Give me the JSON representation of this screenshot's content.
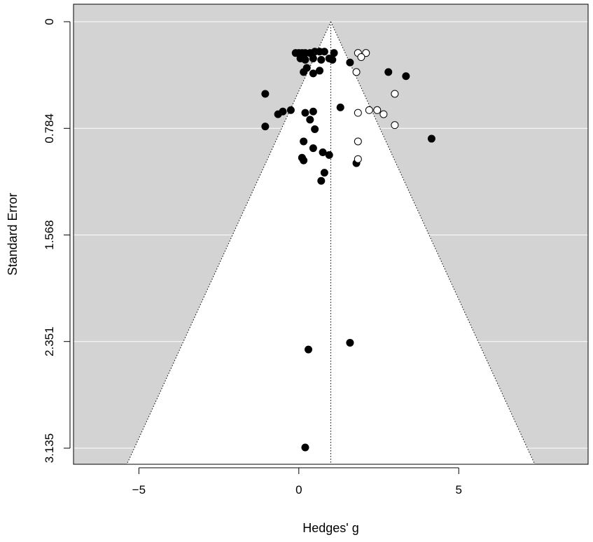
{
  "chart_data": {
    "type": "scatter",
    "subtype": "funnel-plot",
    "title": "",
    "xlabel": "Hedges' g",
    "ylabel": "Standard Error",
    "xlim": [
      -7,
      9
    ],
    "ylim": [
      0,
      3.27
    ],
    "y_reversed": true,
    "x_ticks": [
      -5,
      0,
      5
    ],
    "x_tick_labels": [
      "−5",
      "0",
      "5"
    ],
    "y_ticks": [
      0,
      0.784,
      1.568,
      2.351,
      3.135
    ],
    "y_tick_labels": [
      "0",
      "0.784",
      "1.568",
      "2.351",
      "3.135"
    ],
    "center_estimate": 1.0,
    "funnel_z": 1.96,
    "grid": "horizontal",
    "colors": {
      "panel": "#d3d3d3",
      "funnel": "#ffffff",
      "grid": "#ffffff",
      "observed": "#000000",
      "filled": "#ffffff"
    },
    "series": [
      {
        "marker": "filled-circle",
        "points": [
          [
            -0.1,
            0.23
          ],
          [
            0.0,
            0.23
          ],
          [
            0.1,
            0.23
          ],
          [
            0.2,
            0.23
          ],
          [
            0.35,
            0.23
          ],
          [
            0.5,
            0.22
          ],
          [
            0.65,
            0.22
          ],
          [
            0.8,
            0.22
          ],
          [
            1.1,
            0.23
          ],
          [
            0.05,
            0.27
          ],
          [
            0.2,
            0.28
          ],
          [
            0.45,
            0.27
          ],
          [
            0.7,
            0.28
          ],
          [
            0.95,
            0.27
          ],
          [
            1.05,
            0.28
          ],
          [
            1.6,
            0.3
          ],
          [
            0.25,
            0.34
          ],
          [
            0.15,
            0.37
          ],
          [
            0.45,
            0.38
          ],
          [
            0.65,
            0.36
          ],
          [
            2.8,
            0.37
          ],
          [
            3.35,
            0.4
          ],
          [
            -1.05,
            0.53
          ],
          [
            1.3,
            0.63
          ],
          [
            0.2,
            0.67
          ],
          [
            0.45,
            0.66
          ],
          [
            -0.25,
            0.65
          ],
          [
            -0.5,
            0.66
          ],
          [
            -0.65,
            0.68
          ],
          [
            0.35,
            0.72
          ],
          [
            -1.05,
            0.77
          ],
          [
            0.5,
            0.79
          ],
          [
            4.15,
            0.86
          ],
          [
            0.15,
            0.88
          ],
          [
            0.45,
            0.93
          ],
          [
            0.75,
            0.96
          ],
          [
            0.95,
            0.98
          ],
          [
            0.1,
            1.0
          ],
          [
            0.15,
            1.02
          ],
          [
            1.8,
            1.04
          ],
          [
            0.8,
            1.11
          ],
          [
            0.7,
            1.17
          ],
          [
            1.6,
            2.36
          ],
          [
            0.3,
            2.41
          ],
          [
            0.2,
            3.13
          ]
        ]
      },
      {
        "marker": "open-circle",
        "points": [
          [
            1.85,
            0.23
          ],
          [
            2.1,
            0.23
          ],
          [
            1.95,
            0.26
          ],
          [
            1.8,
            0.37
          ],
          [
            3.0,
            0.53
          ],
          [
            2.2,
            0.65
          ],
          [
            2.45,
            0.65
          ],
          [
            2.65,
            0.68
          ],
          [
            1.85,
            0.67
          ],
          [
            3.0,
            0.76
          ],
          [
            1.85,
            0.88
          ],
          [
            1.85,
            1.01
          ]
        ]
      }
    ]
  }
}
